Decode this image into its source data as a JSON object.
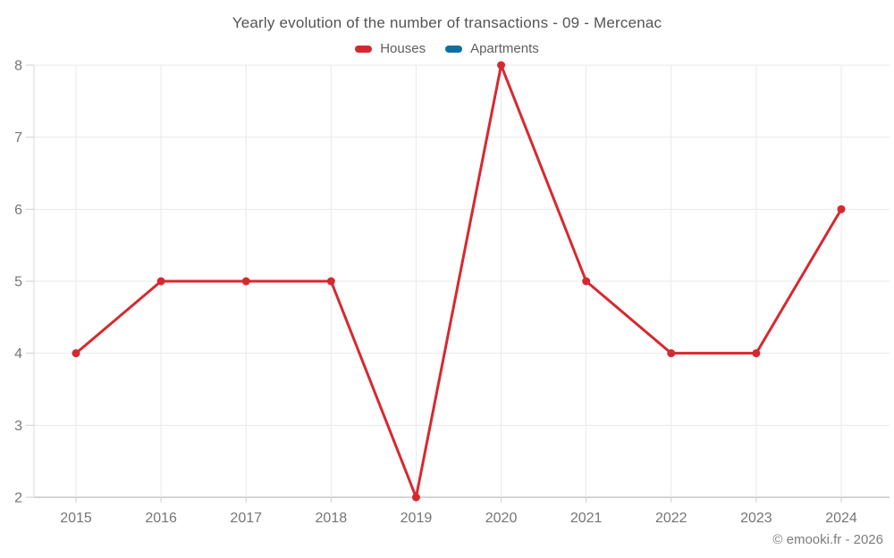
{
  "chart": {
    "title": "Yearly evolution of the number of transactions - 09 - Mercenac",
    "watermark": "© emooki.fr - 2026"
  },
  "legend": {
    "items": [
      {
        "label": "Houses",
        "color": "#d7282f"
      },
      {
        "label": "Apartments",
        "color": "#0f6fa3"
      }
    ]
  },
  "chart_data": {
    "type": "line",
    "title": "Yearly evolution of the number of transactions - 09 - Mercenac",
    "categories": [
      "2015",
      "2016",
      "2017",
      "2018",
      "2019",
      "2020",
      "2021",
      "2022",
      "2023",
      "2024"
    ],
    "series": [
      {
        "name": "Houses",
        "color": "#d7282f",
        "values": [
          4,
          5,
          5,
          5,
          2,
          8,
          5,
          4,
          4,
          6
        ]
      },
      {
        "name": "Apartments",
        "color": "#0f6fa3",
        "values": []
      }
    ],
    "xlabel": "",
    "ylabel": "",
    "ylim": [
      2,
      8
    ],
    "yticks": [
      2,
      3,
      4,
      5,
      6,
      7,
      8
    ],
    "grid": true,
    "legend_position": "top",
    "colors": {
      "gridline": "#e9e9e9",
      "plot_border": "#d9d9d9",
      "axis_line": "#ababab",
      "tick": "#cfcfcf",
      "tick_label": "#757575"
    }
  }
}
